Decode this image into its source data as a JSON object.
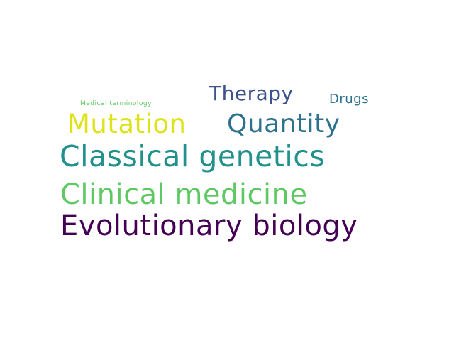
{
  "words": [
    {
      "text": "Medical terminology",
      "color": "#5ec962"
    },
    {
      "text": "Therapy",
      "color": "#3b528b"
    },
    {
      "text": "Drugs",
      "color": "#2c728e"
    },
    {
      "text": "Mutation",
      "color": "#dde318"
    },
    {
      "text": "Quantity",
      "color": "#2c728e"
    },
    {
      "text": "Classical genetics",
      "color": "#21918c"
    },
    {
      "text": "Clinical medicine",
      "color": "#5ec962"
    },
    {
      "text": "Evolutionary biology",
      "color": "#440154"
    }
  ]
}
